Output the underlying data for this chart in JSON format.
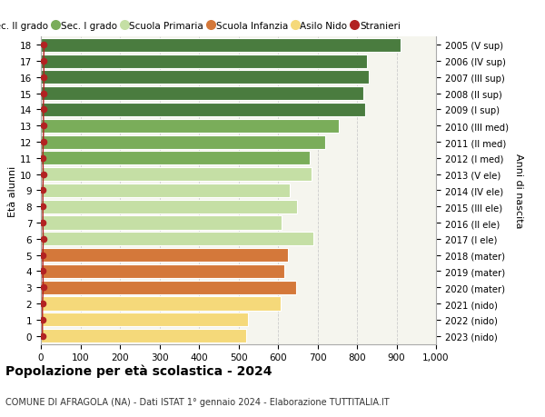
{
  "ages": [
    18,
    17,
    16,
    15,
    14,
    13,
    12,
    11,
    10,
    9,
    8,
    7,
    6,
    5,
    4,
    3,
    2,
    1,
    0
  ],
  "values": [
    910,
    825,
    830,
    815,
    820,
    755,
    720,
    680,
    685,
    630,
    648,
    610,
    690,
    625,
    615,
    645,
    607,
    525,
    520
  ],
  "right_labels": [
    "2005 (V sup)",
    "2006 (IV sup)",
    "2007 (III sup)",
    "2008 (II sup)",
    "2009 (I sup)",
    "2010 (III med)",
    "2011 (II med)",
    "2012 (I med)",
    "2013 (V ele)",
    "2014 (IV ele)",
    "2015 (III ele)",
    "2016 (II ele)",
    "2017 (I ele)",
    "2018 (mater)",
    "2019 (mater)",
    "2020 (mater)",
    "2021 (nido)",
    "2022 (nido)",
    "2023 (nido)"
  ],
  "bar_colors": [
    "#4a7c3f",
    "#4a7c3f",
    "#4a7c3f",
    "#4a7c3f",
    "#4a7c3f",
    "#7aad5a",
    "#7aad5a",
    "#7aad5a",
    "#c5dfa5",
    "#c5dfa5",
    "#c5dfa5",
    "#c5dfa5",
    "#c5dfa5",
    "#d4783a",
    "#d4783a",
    "#d4783a",
    "#f5d97a",
    "#f5d97a",
    "#f5d97a"
  ],
  "stranieri_values": [
    8,
    7,
    8,
    7,
    6,
    7,
    6,
    5,
    6,
    5,
    5,
    5,
    6,
    5,
    5,
    6,
    4,
    4,
    4
  ],
  "legend_labels": [
    "Sec. II grado",
    "Sec. I grado",
    "Scuola Primaria",
    "Scuola Infanzia",
    "Asilo Nido",
    "Stranieri"
  ],
  "legend_colors": [
    "#4a7c3f",
    "#7aad5a",
    "#c5dfa5",
    "#d4783a",
    "#f5d97a",
    "#b22222"
  ],
  "title": "Popolazione per età scolastica - 2024",
  "subtitle": "COMUNE DI AFRAGOLA (NA) - Dati ISTAT 1° gennaio 2024 - Elaborazione TUTTITALIA.IT",
  "ylabel": "Età alunni",
  "right_ylabel": "Anni di nascita",
  "ax_bg_color": "#f5f5f0",
  "grid_color": "#cccccc"
}
